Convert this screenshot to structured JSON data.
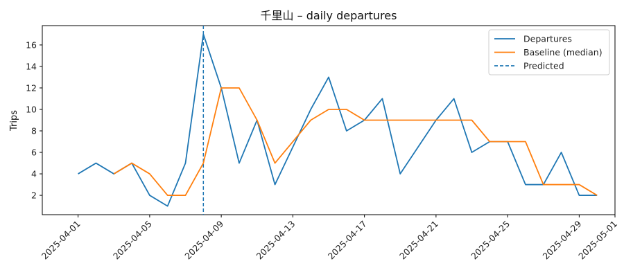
{
  "chart_data": {
    "type": "line",
    "title": "千里山 – daily departures",
    "xlabel": "",
    "ylabel": "Trips",
    "x": [
      "2025-04-01",
      "2025-04-02",
      "2025-04-03",
      "2025-04-04",
      "2025-04-05",
      "2025-04-06",
      "2025-04-07",
      "2025-04-08",
      "2025-04-09",
      "2025-04-10",
      "2025-04-11",
      "2025-04-12",
      "2025-04-13",
      "2025-04-14",
      "2025-04-15",
      "2025-04-16",
      "2025-04-17",
      "2025-04-18",
      "2025-04-19",
      "2025-04-20",
      "2025-04-21",
      "2025-04-22",
      "2025-04-23",
      "2025-04-24",
      "2025-04-25",
      "2025-04-26",
      "2025-04-27",
      "2025-04-28",
      "2025-04-29",
      "2025-04-30"
    ],
    "series": [
      {
        "name": "Departures",
        "color": "#1f77b4",
        "values": [
          4,
          5,
          4,
          5,
          2,
          1,
          5,
          17,
          12,
          5,
          9,
          3,
          6.5,
          10,
          13,
          8,
          9,
          11,
          4,
          6.5,
          9,
          11,
          6,
          7,
          7,
          3,
          3,
          6,
          2,
          2
        ]
      },
      {
        "name": "Baseline (median)",
        "color": "#ff7f0e",
        "values": [
          null,
          null,
          4,
          5,
          4,
          2,
          2,
          5,
          12,
          12,
          9,
          5,
          7,
          9,
          10,
          10,
          9,
          9,
          9,
          9,
          9,
          9,
          9,
          7,
          7,
          7,
          3,
          3,
          3,
          2
        ]
      }
    ],
    "predicted_line": {
      "name": "Predicted",
      "x": "2025-04-08",
      "color": "#1f77b4",
      "style": "dashed"
    },
    "xticks": [
      "2025-04-01",
      "2025-04-05",
      "2025-04-09",
      "2025-04-13",
      "2025-04-17",
      "2025-04-21",
      "2025-04-25",
      "2025-04-29",
      "2025-05-01"
    ],
    "yticks": [
      2,
      4,
      6,
      8,
      10,
      12,
      14,
      16
    ],
    "xlim": [
      "2025-03-30",
      "2025-05-01"
    ],
    "ylim": [
      0.2,
      17.8
    ],
    "grid": false,
    "legend_position": "top-right"
  }
}
